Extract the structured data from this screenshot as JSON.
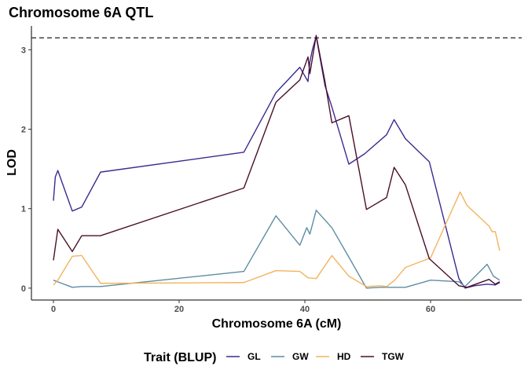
{
  "chart_data": {
    "type": "line",
    "title": "Chromosome 6A QTL",
    "xlabel": "Chromosome 6A (cM)",
    "ylabel": "LOD",
    "xlim": [
      -3.5,
      74.5
    ],
    "ylim": [
      -0.15,
      3.3
    ],
    "x_ticks": [
      0,
      20,
      40,
      60
    ],
    "y_ticks": [
      0,
      1,
      2,
      3
    ],
    "threshold": 3.15,
    "grid": false,
    "legend": {
      "title": "Trait (BLUP)",
      "position": "bottom"
    },
    "series": [
      {
        "name": "GL",
        "color": "#3d2a8f",
        "points": [
          [
            0,
            1.1
          ],
          [
            0.3,
            1.4
          ],
          [
            0.7,
            1.48
          ],
          [
            3,
            0.97
          ],
          [
            4.5,
            1.02
          ],
          [
            7.5,
            1.46
          ],
          [
            30.3,
            1.71
          ],
          [
            35.4,
            2.46
          ],
          [
            39.2,
            2.78
          ],
          [
            40.5,
            2.6
          ],
          [
            40.8,
            2.85
          ],
          [
            41.2,
            3.0
          ],
          [
            41.8,
            3.17
          ],
          [
            43.2,
            2.55
          ],
          [
            44.3,
            2.28
          ],
          [
            47,
            1.56
          ],
          [
            49.5,
            1.69
          ],
          [
            53,
            1.93
          ],
          [
            54.2,
            2.12
          ],
          [
            56,
            1.88
          ],
          [
            59.8,
            1.59
          ],
          [
            64.5,
            0.12
          ],
          [
            65.5,
            0.0
          ],
          [
            67,
            0.03
          ],
          [
            69,
            0.05
          ],
          [
            70.3,
            0.04
          ],
          [
            71,
            0.07
          ]
        ]
      },
      {
        "name": "GW",
        "color": "#5f8ca3",
        "points": [
          [
            0,
            0.1
          ],
          [
            1,
            0.07
          ],
          [
            3,
            0.01
          ],
          [
            4.5,
            0.02
          ],
          [
            7.5,
            0.02
          ],
          [
            30.3,
            0.21
          ],
          [
            35.4,
            0.91
          ],
          [
            39.2,
            0.54
          ],
          [
            40.3,
            0.76
          ],
          [
            40.8,
            0.68
          ],
          [
            41.8,
            0.98
          ],
          [
            44.3,
            0.76
          ],
          [
            47,
            0.39
          ],
          [
            49.8,
            0.0
          ],
          [
            52,
            0.01
          ],
          [
            56,
            0.01
          ],
          [
            60,
            0.1
          ],
          [
            64.5,
            0.08
          ],
          [
            65.5,
            0.02
          ],
          [
            69,
            0.3
          ],
          [
            70,
            0.15
          ],
          [
            71,
            0.1
          ]
        ]
      },
      {
        "name": "HD",
        "color": "#f2b45c",
        "points": [
          [
            0,
            0.04
          ],
          [
            0.7,
            0.1
          ],
          [
            3,
            0.4
          ],
          [
            4.5,
            0.41
          ],
          [
            7.5,
            0.06
          ],
          [
            30.3,
            0.07
          ],
          [
            35.4,
            0.22
          ],
          [
            39.2,
            0.21
          ],
          [
            40.5,
            0.13
          ],
          [
            41.8,
            0.12
          ],
          [
            44.3,
            0.41
          ],
          [
            47,
            0.15
          ],
          [
            49.8,
            0.02
          ],
          [
            52,
            0.03
          ],
          [
            53,
            0.02
          ],
          [
            54.3,
            0.1
          ],
          [
            56,
            0.26
          ],
          [
            60,
            0.38
          ],
          [
            64.7,
            1.21
          ],
          [
            65.8,
            1.04
          ],
          [
            69.3,
            0.78
          ],
          [
            69.8,
            0.71
          ],
          [
            70.3,
            0.71
          ],
          [
            71,
            0.47
          ]
        ]
      },
      {
        "name": "TGW",
        "color": "#4a0f2a",
        "points": [
          [
            0,
            0.35
          ],
          [
            0.7,
            0.74
          ],
          [
            3,
            0.46
          ],
          [
            4.5,
            0.66
          ],
          [
            7.5,
            0.66
          ],
          [
            30.3,
            1.26
          ],
          [
            35.4,
            2.34
          ],
          [
            39.2,
            2.62
          ],
          [
            40.5,
            2.91
          ],
          [
            40.8,
            2.7
          ],
          [
            41.8,
            3.18
          ],
          [
            43.2,
            2.6
          ],
          [
            44.3,
            2.08
          ],
          [
            47,
            2.17
          ],
          [
            49.8,
            0.99
          ],
          [
            53,
            1.14
          ],
          [
            54.2,
            1.52
          ],
          [
            56,
            1.3
          ],
          [
            59.8,
            0.37
          ],
          [
            64.5,
            0.03
          ],
          [
            65.8,
            0.01
          ],
          [
            69.3,
            0.11
          ],
          [
            70.3,
            0.05
          ],
          [
            71,
            0.08
          ]
        ]
      }
    ]
  }
}
